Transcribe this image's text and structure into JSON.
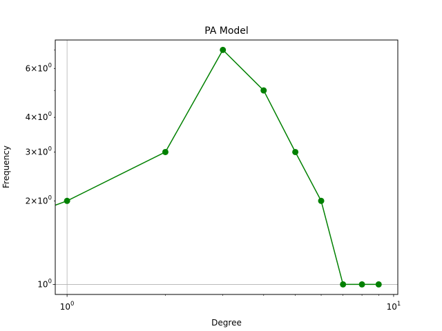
{
  "chart_data": {
    "type": "line",
    "title": "PA Model",
    "xlabel": "Degree",
    "ylabel": "Frequency",
    "xscale": "log",
    "yscale": "log",
    "xlim": [
      0.92,
      10.3
    ],
    "ylim": [
      0.92,
      7.6
    ],
    "grid": {
      "x_lines": [
        1
      ],
      "y_lines": [
        1
      ]
    },
    "x_ticks": [
      {
        "value": 1,
        "base": "10",
        "exp": "0"
      },
      {
        "value": 10,
        "base": "10",
        "exp": "1"
      }
    ],
    "y_ticks": [
      {
        "value": 1,
        "mantissa": "",
        "base": "10",
        "exp": "0"
      },
      {
        "value": 2,
        "mantissa": "2",
        "base": "10",
        "exp": "0"
      },
      {
        "value": 3,
        "mantissa": "3",
        "base": "10",
        "exp": "0"
      },
      {
        "value": 4,
        "mantissa": "4",
        "base": "10",
        "exp": "0"
      },
      {
        "value": 6,
        "mantissa": "6",
        "base": "10",
        "exp": "0"
      }
    ],
    "series": [
      {
        "name": "PA Model",
        "color": "#008000",
        "x": [
          0,
          1,
          2,
          3,
          4,
          5,
          6,
          7,
          8,
          9
        ],
        "y": [
          1,
          2,
          3,
          7,
          5,
          3,
          2,
          1,
          1,
          1
        ]
      }
    ]
  }
}
